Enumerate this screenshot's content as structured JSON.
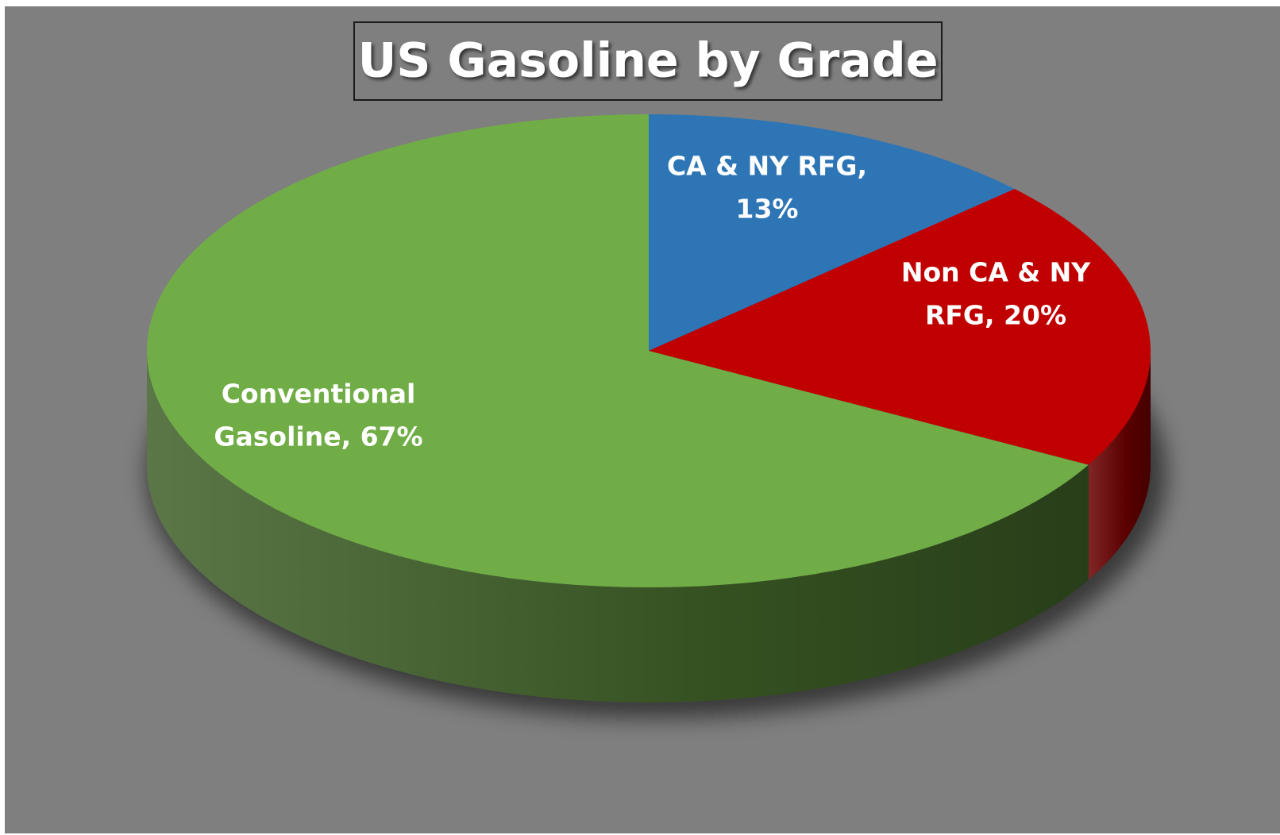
{
  "chart_data": {
    "type": "pie",
    "title": "US Gasoline by Grade",
    "values": [
      13,
      20,
      67
    ],
    "value_labels": [
      [
        "CA & NY RFG,",
        "13%"
      ],
      [
        "Non CA & NY",
        "RFG, 20%"
      ],
      [
        "Conventional",
        "Gasoline, 67%"
      ]
    ],
    "colors": [
      "#2e75b6",
      "#c00000",
      "#70ad47"
    ]
  }
}
